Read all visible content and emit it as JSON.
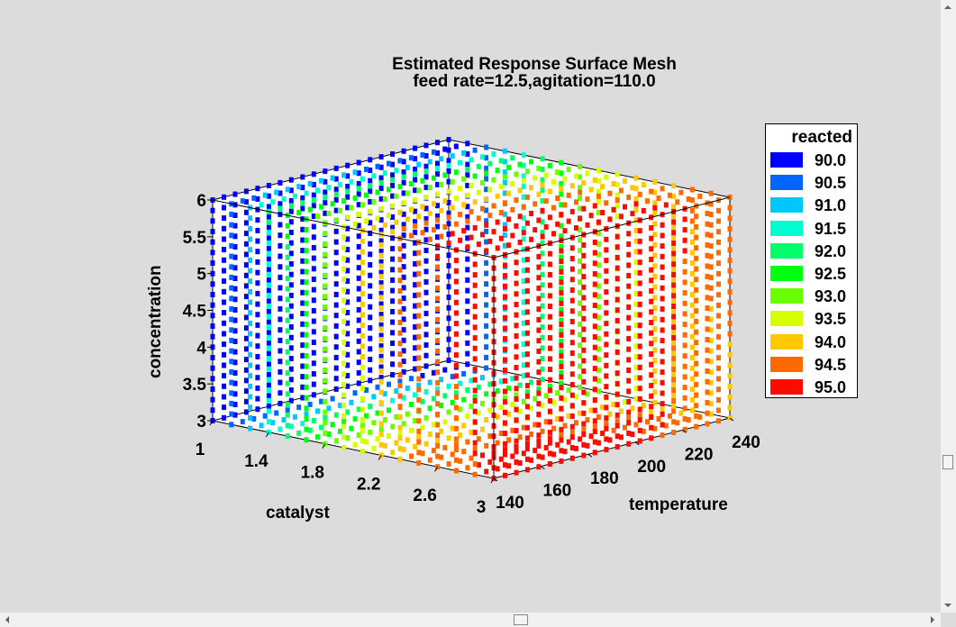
{
  "chart_data": {
    "type": "scatter",
    "title": "Estimated Response Surface Mesh",
    "subtitle": "feed rate=12.5,agitation=110.0",
    "xlabel": "catalyst",
    "ylabel": "temperature",
    "zlabel": "concentration",
    "x_ticks": [
      "1",
      "1.4",
      "1.8",
      "2.2",
      "2.6",
      "3"
    ],
    "y_ticks": [
      "140",
      "160",
      "180",
      "200",
      "220",
      "240"
    ],
    "z_ticks": [
      "3",
      "3.5",
      "4",
      "4.5",
      "5",
      "5.5",
      "6"
    ],
    "xlim": [
      1,
      3
    ],
    "ylim": [
      140,
      240
    ],
    "zlim": [
      3,
      6
    ],
    "grid": false,
    "legend_position": "right",
    "legend": {
      "title": "reacted",
      "entries": [
        {
          "label": "90.0",
          "color": "#0000ff"
        },
        {
          "label": "90.5",
          "color": "#0066ff"
        },
        {
          "label": "91.0",
          "color": "#00c8ff"
        },
        {
          "label": "91.5",
          "color": "#00ffd0"
        },
        {
          "label": "92.0",
          "color": "#00ff6a"
        },
        {
          "label": "92.5",
          "color": "#00ff10"
        },
        {
          "label": "93.0",
          "color": "#6aff00"
        },
        {
          "label": "93.5",
          "color": "#d8ff00"
        },
        {
          "label": "94.0",
          "color": "#ffc800"
        },
        {
          "label": "94.5",
          "color": "#ff6a00"
        },
        {
          "label": "95.0",
          "color": "#ff0a00"
        }
      ]
    }
  }
}
